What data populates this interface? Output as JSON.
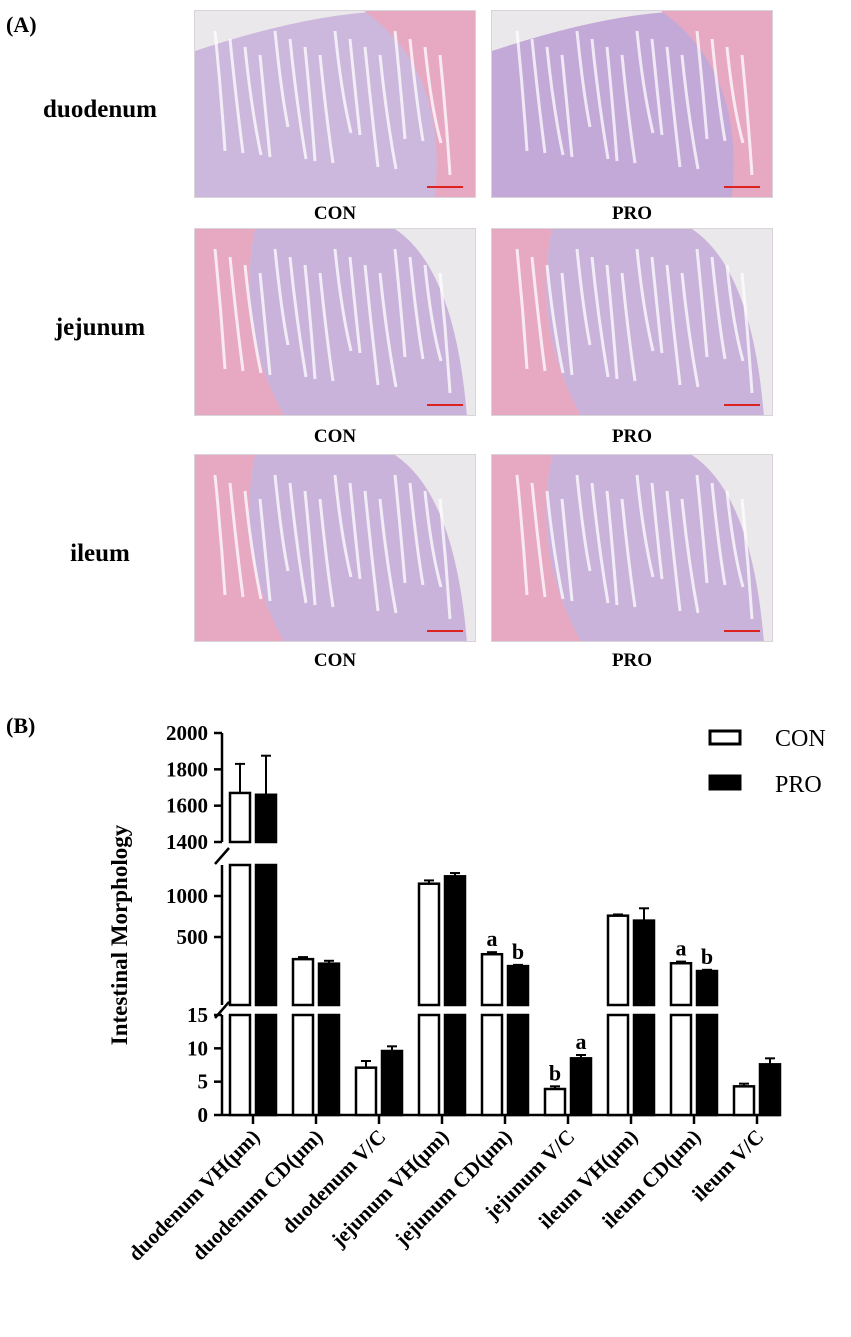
{
  "panel_a": {
    "label": "(A)",
    "rows": [
      {
        "name": "duodenum",
        "left_caption": "CON",
        "right_caption": "PRO"
      },
      {
        "name": "jejunum",
        "left_caption": "CON",
        "right_caption": "PRO"
      },
      {
        "name": "ileum",
        "left_caption": "CON",
        "right_caption": "PRO"
      }
    ]
  },
  "panel_b": {
    "label": "(B)"
  },
  "colors": {
    "tissue_pink": "#e7a9c2",
    "tissue_purple": "#b28fd0",
    "slide_bg": "#ebe8ec",
    "con_fill": "#ffffff",
    "pro_fill": "#000000"
  },
  "chart_data": {
    "type": "bar",
    "ylabel": "Intestinal Morphology",
    "categories": [
      "duodenum VH(μm)",
      "duodenum CD(μm)",
      "duodenum V/C",
      "jejunum VH(μm)",
      "jejunum CD(μm)",
      "jejunum V/C",
      "ileum VH(μm)",
      "ileum CD(μm)",
      "ileum V/C"
    ],
    "series": [
      {
        "name": "CON",
        "values": [
          1670,
          230,
          7.1,
          1150,
          290,
          3.9,
          760,
          180,
          4.3
        ],
        "errors": [
          160,
          25,
          1.0,
          40,
          25,
          0.4,
          15,
          20,
          0.4
        ],
        "labels": [
          "",
          "",
          "",
          "",
          "a",
          "b",
          "",
          "a",
          ""
        ]
      },
      {
        "name": "PRO",
        "values": [
          1660,
          175,
          9.6,
          1240,
          145,
          8.5,
          700,
          85,
          7.6
        ],
        "errors": [
          215,
          35,
          0.7,
          40,
          15,
          0.5,
          150,
          15,
          0.9
        ],
        "labels": [
          "",
          "",
          "",
          "",
          "b",
          "a",
          "",
          "b",
          ""
        ]
      }
    ],
    "y_segments": [
      {
        "range": [
          0,
          15
        ],
        "ticks": [
          "0",
          "5",
          "10",
          "15"
        ]
      },
      {
        "range": [
          0,
          1350
        ],
        "ticks": [
          "500",
          "1000"
        ]
      },
      {
        "range": [
          1400,
          2000
        ],
        "ticks": [
          "1400",
          "1600",
          "1800",
          "2000"
        ]
      }
    ],
    "legend_position": "top-right",
    "grid": false
  }
}
